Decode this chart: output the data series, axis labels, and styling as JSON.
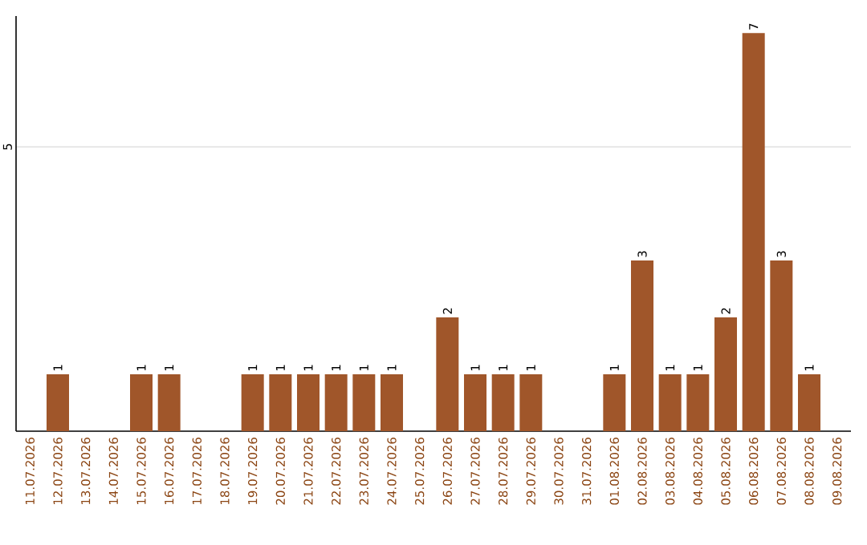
{
  "chart_data": {
    "type": "bar",
    "categories": [
      "11.07.2026",
      "12.07.2026",
      "13.07.2026",
      "14.07.2026",
      "15.07.2026",
      "16.07.2026",
      "17.07.2026",
      "18.07.2026",
      "19.07.2026",
      "20.07.2026",
      "21.07.2026",
      "22.07.2026",
      "23.07.2026",
      "24.07.2026",
      "25.07.2026",
      "26.07.2026",
      "27.07.2026",
      "28.07.2026",
      "29.07.2026",
      "30.07.2026",
      "31.07.2026",
      "01.08.2026",
      "02.08.2026",
      "03.08.2026",
      "04.08.2026",
      "05.08.2026",
      "06.08.2026",
      "07.08.2026",
      "08.08.2026",
      "09.08.2026"
    ],
    "values": [
      0,
      1,
      0,
      0,
      1,
      1,
      0,
      0,
      1,
      1,
      1,
      1,
      1,
      1,
      0,
      2,
      1,
      1,
      1,
      0,
      0,
      1,
      3,
      1,
      1,
      2,
      7,
      3,
      1,
      0
    ],
    "value_labels": [
      null,
      "1",
      null,
      null,
      "1",
      "1",
      null,
      null,
      "1",
      "1",
      "1",
      "1",
      "1",
      "1",
      null,
      "2",
      "1",
      "1",
      "1",
      null,
      null,
      "1",
      "3",
      "1",
      "1",
      "2",
      "7",
      "3",
      "1",
      null
    ],
    "color": "#a0562a",
    "ylim": [
      0,
      7.3
    ],
    "yticks": [
      5
    ],
    "grid": "y"
  }
}
